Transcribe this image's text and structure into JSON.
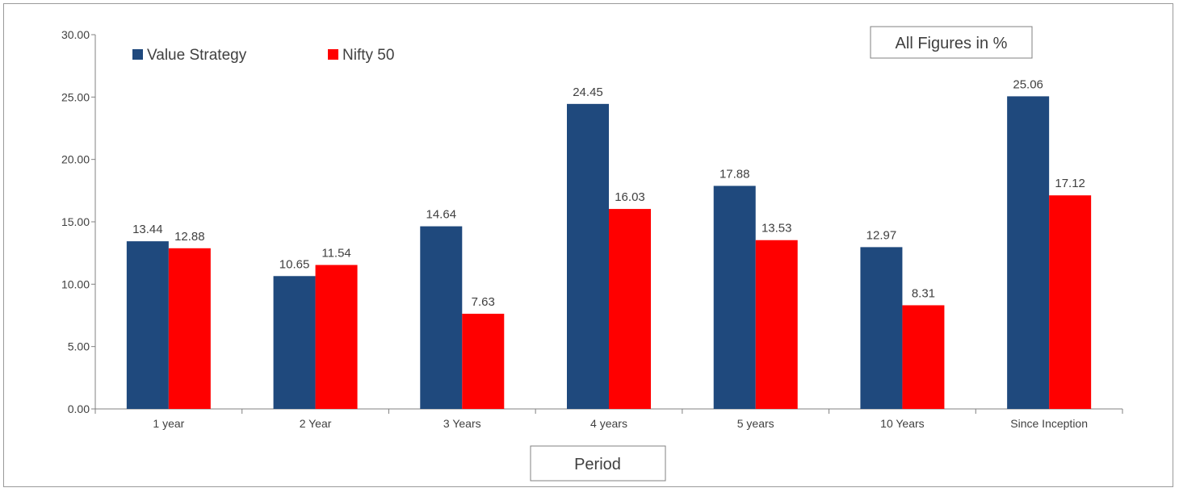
{
  "chart_data": {
    "type": "bar",
    "categories": [
      "1 year",
      "2 Year",
      "3 Years",
      "4 years",
      "5 years",
      "10 Years",
      "Since Inception"
    ],
    "series": [
      {
        "name": "Value Strategy",
        "color": "#1f497d",
        "values": [
          13.44,
          10.65,
          14.64,
          24.45,
          17.88,
          12.97,
          25.06
        ]
      },
      {
        "name": "Nifty 50",
        "color": "#ff0000",
        "values": [
          12.88,
          11.54,
          7.63,
          16.03,
          13.53,
          8.31,
          17.12
        ]
      }
    ],
    "data_labels": [
      [
        "13.44",
        "10.65",
        "14.64",
        "24.45",
        "17.88",
        "12.97",
        "25.06"
      ],
      [
        "12.88",
        "11.54",
        "7.63",
        "16.03",
        "13.53",
        "8.31",
        "17.12"
      ]
    ],
    "yticks": [
      "0.00",
      "5.00",
      "10.00",
      "15.00",
      "20.00",
      "25.00",
      "30.00"
    ],
    "ylim": [
      0,
      30
    ],
    "xlabel": "Period",
    "ylabel": "",
    "annotation": "All Figures in %",
    "legend_position": "top-left",
    "grid": false,
    "axis_color": "#808080"
  }
}
